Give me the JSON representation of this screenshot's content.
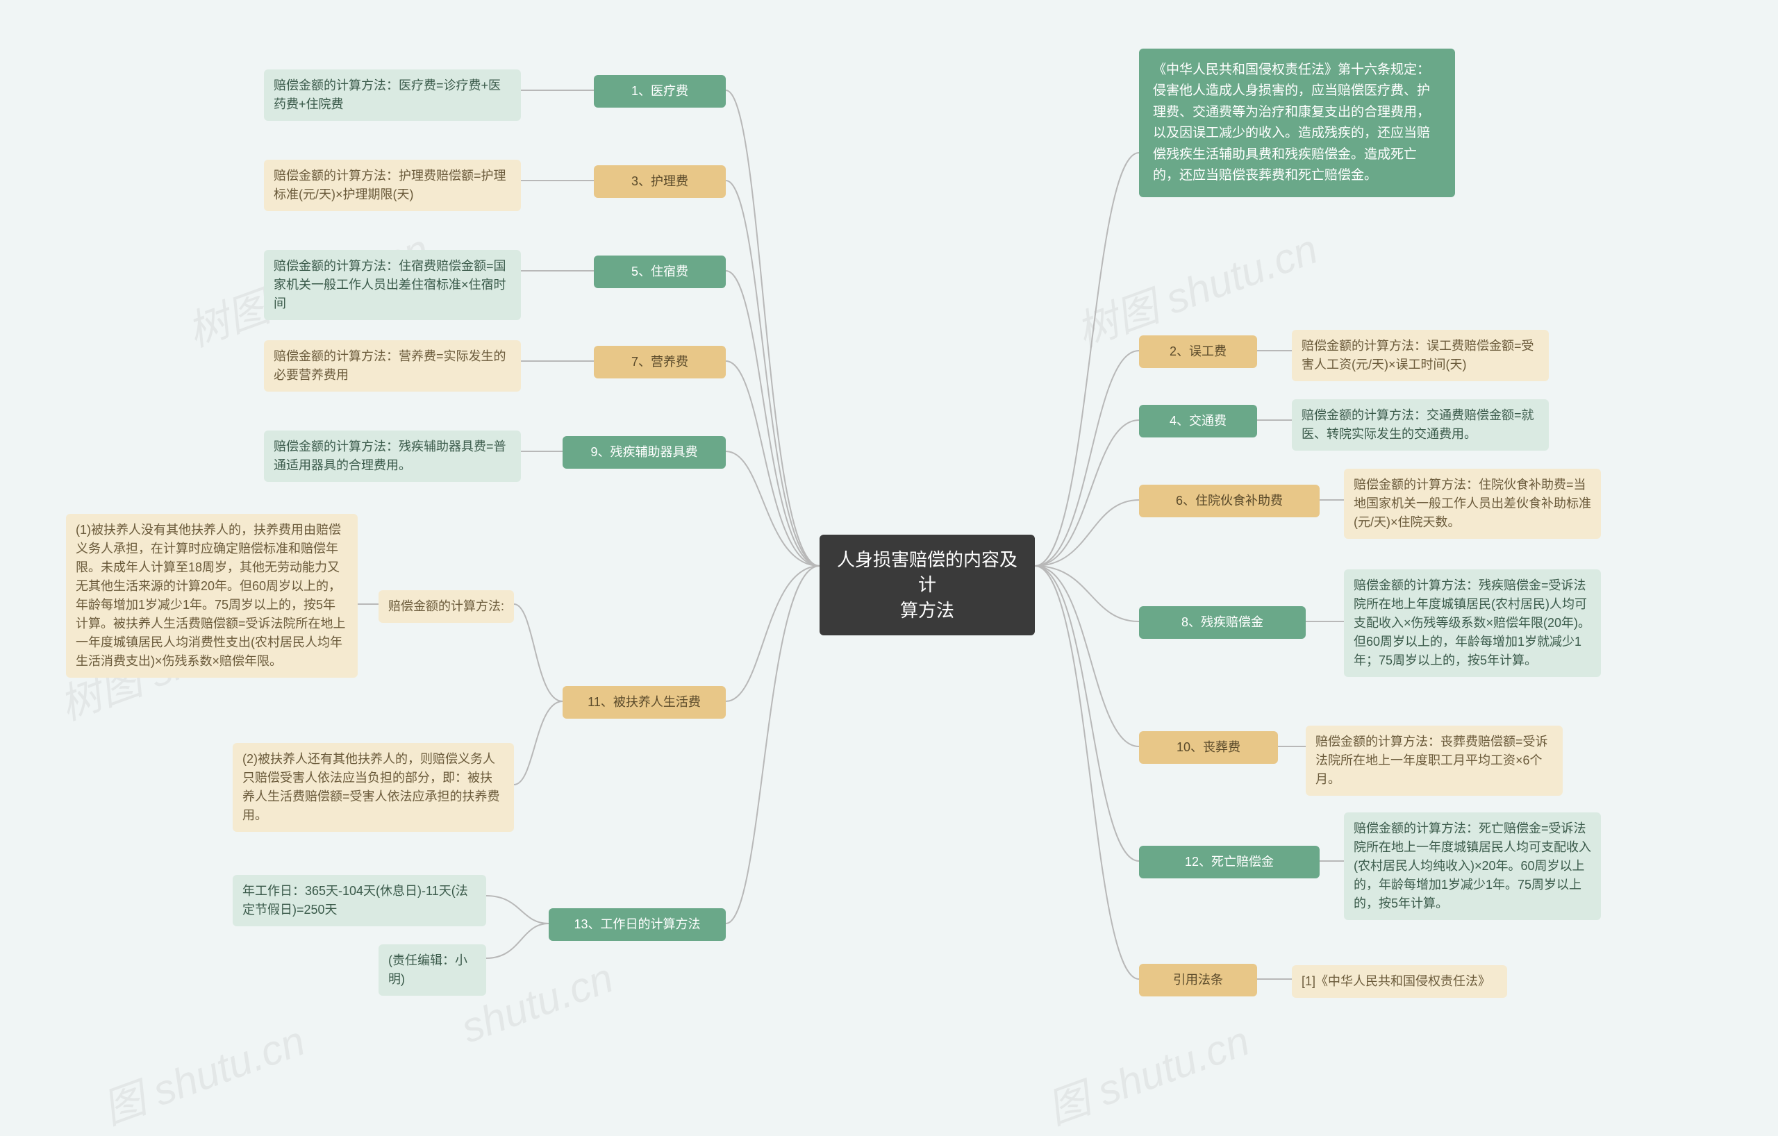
{
  "root": {
    "title": "人身损害赔偿的内容及计\n算方法"
  },
  "intro": {
    "text": "《中华人民共和国侵权责任法》第十六条规定：侵害他人造成人身损害的，应当赔偿医疗费、护理费、交通费等为治疗和康复支出的合理费用，以及因误工减少的收入。造成残疾的，还应当赔偿残疾生活辅助具费和残疾赔偿金。造成死亡的，还应当赔偿丧葬费和死亡赔偿金。"
  },
  "left": {
    "n1": {
      "label": "1、医疗费",
      "detail": "赔偿金额的计算方法：医疗费=诊疗费+医药费+住院费"
    },
    "n3": {
      "label": "3、护理费",
      "detail": "赔偿金额的计算方法：护理费赔偿额=护理标准(元/天)×护理期限(天)"
    },
    "n5": {
      "label": "5、住宿费",
      "detail": "赔偿金额的计算方法：住宿费赔偿金额=国家机关一般工作人员出差住宿标准×住宿时间"
    },
    "n7": {
      "label": "7、营养费",
      "detail": "赔偿金额的计算方法：营养费=实际发生的必要营养费用"
    },
    "n9": {
      "label": "9、残疾辅助器具费",
      "detail": "赔偿金额的计算方法：残疾辅助器具费=普通适用器具的合理费用。"
    },
    "n11": {
      "label": "11、被扶养人生活费",
      "sub1label": "赔偿金额的计算方法:",
      "sub1a": "(1)被扶养人没有其他扶养人的，扶养费用由赔偿义务人承担，在计算时应确定赔偿标准和赔偿年限。未成年人计算至18周岁，其他无劳动能力又无其他生活来源的计算20年。但60周岁以上的，年龄每增加1岁减少1年。75周岁以上的，按5年计算。被扶养人生活费赔偿额=受诉法院所在地上一年度城镇居民人均消费性支出(农村居民人均年生活消费支出)×伤残系数×赔偿年限。",
      "sub1b": "(2)被扶养人还有其他扶养人的，则赔偿义务人只赔偿受害人依法应当负担的部分，即：被扶养人生活费赔偿额=受害人依法应承担的扶养费用。"
    },
    "n13": {
      "label": "13、工作日的计算方法",
      "detail1": "年工作日：365天-104天(休息日)-11天(法定节假日)=250天",
      "detail2": "(责任编辑：小明)"
    }
  },
  "right": {
    "n2": {
      "label": "2、误工费",
      "detail": "赔偿金额的计算方法：误工费赔偿金额=受害人工资(元/天)×误工时间(天)"
    },
    "n4": {
      "label": "4、交通费",
      "detail": "赔偿金额的计算方法：交通费赔偿金额=就医、转院实际发生的交通费用。"
    },
    "n6": {
      "label": "6、住院伙食补助费",
      "detail": "赔偿金额的计算方法：住院伙食补助费=当地国家机关一般工作人员出差伙食补助标准(元/天)×住院天数。"
    },
    "n8": {
      "label": "8、残疾赔偿金",
      "detail": "赔偿金额的计算方法：残疾赔偿金=受诉法院所在地上年度城镇居民(农村居民)人均可支配收入×伤残等级系数×赔偿年限(20年)。但60周岁以上的，年龄每增加1岁就减少1年；75周岁以上的，按5年计算。"
    },
    "n10": {
      "label": "10、丧葬费",
      "detail": "赔偿金额的计算方法：丧葬费赔偿额=受诉法院所在地上一年度职工月平均工资×6个月。"
    },
    "n12": {
      "label": "12、死亡赔偿金",
      "detail": "赔偿金额的计算方法：死亡赔偿金=受诉法院所在地上一年度城镇居民人均可支配收入(农村居民人均纯收入)×20年。60周岁以上的，年龄每增加1岁减少1年。75周岁以上的，按5年计算。"
    },
    "cite": {
      "label": "引用法条",
      "detail": "[1]《中华人民共和国侵权责任法》"
    }
  },
  "watermarks": [
    "图 shutu.cn",
    "树图 shutu.cn",
    "树图 shu",
    "图 shutu.cn",
    "shutu.cn"
  ],
  "colors": {
    "bg": "#f0f5f5",
    "root": "#3a3a3a",
    "green": "#6aa889",
    "yellow": "#e8c788",
    "lightgreen": "#daeae2",
    "lightyellow": "#f5ead0",
    "connector": "#b8b8b8"
  }
}
